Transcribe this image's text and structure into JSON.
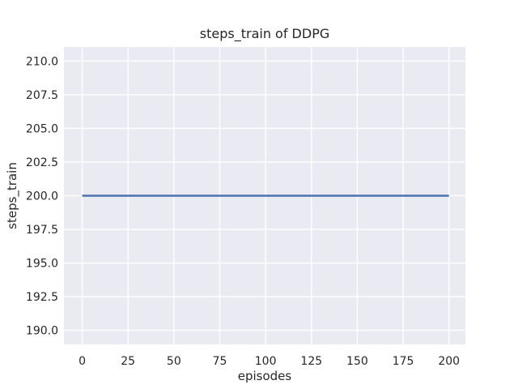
{
  "figure": {
    "background": "#ffffff"
  },
  "chart_data": {
    "type": "line",
    "title": "steps_train of DDPG",
    "xlabel": "episodes",
    "ylabel": "steps_train",
    "xlim": [
      -9.95,
      208.95
    ],
    "ylim": [
      188.95,
      211.05
    ],
    "x_ticks": [
      0,
      25,
      50,
      75,
      100,
      125,
      150,
      175,
      200
    ],
    "x_tick_labels": [
      "0",
      "25",
      "50",
      "75",
      "100",
      "125",
      "150",
      "175",
      "200"
    ],
    "y_ticks": [
      190.0,
      192.5,
      195.0,
      197.5,
      200.0,
      202.5,
      205.0,
      207.5,
      210.0
    ],
    "y_tick_labels": [
      "190.0",
      "192.5",
      "195.0",
      "197.5",
      "200.0",
      "202.5",
      "205.0",
      "207.5",
      "210.0"
    ],
    "grid": true,
    "legend": "none",
    "series": [
      {
        "name": "steps_train",
        "color": "#4c72b0",
        "x": [
          0,
          200
        ],
        "y": [
          200,
          200
        ]
      }
    ],
    "style": {
      "plot_background": "#eaeaf2",
      "grid_color": "#ffffff",
      "text_color": "#262626",
      "line_width": 2.4,
      "grid_width": 1.4
    }
  }
}
